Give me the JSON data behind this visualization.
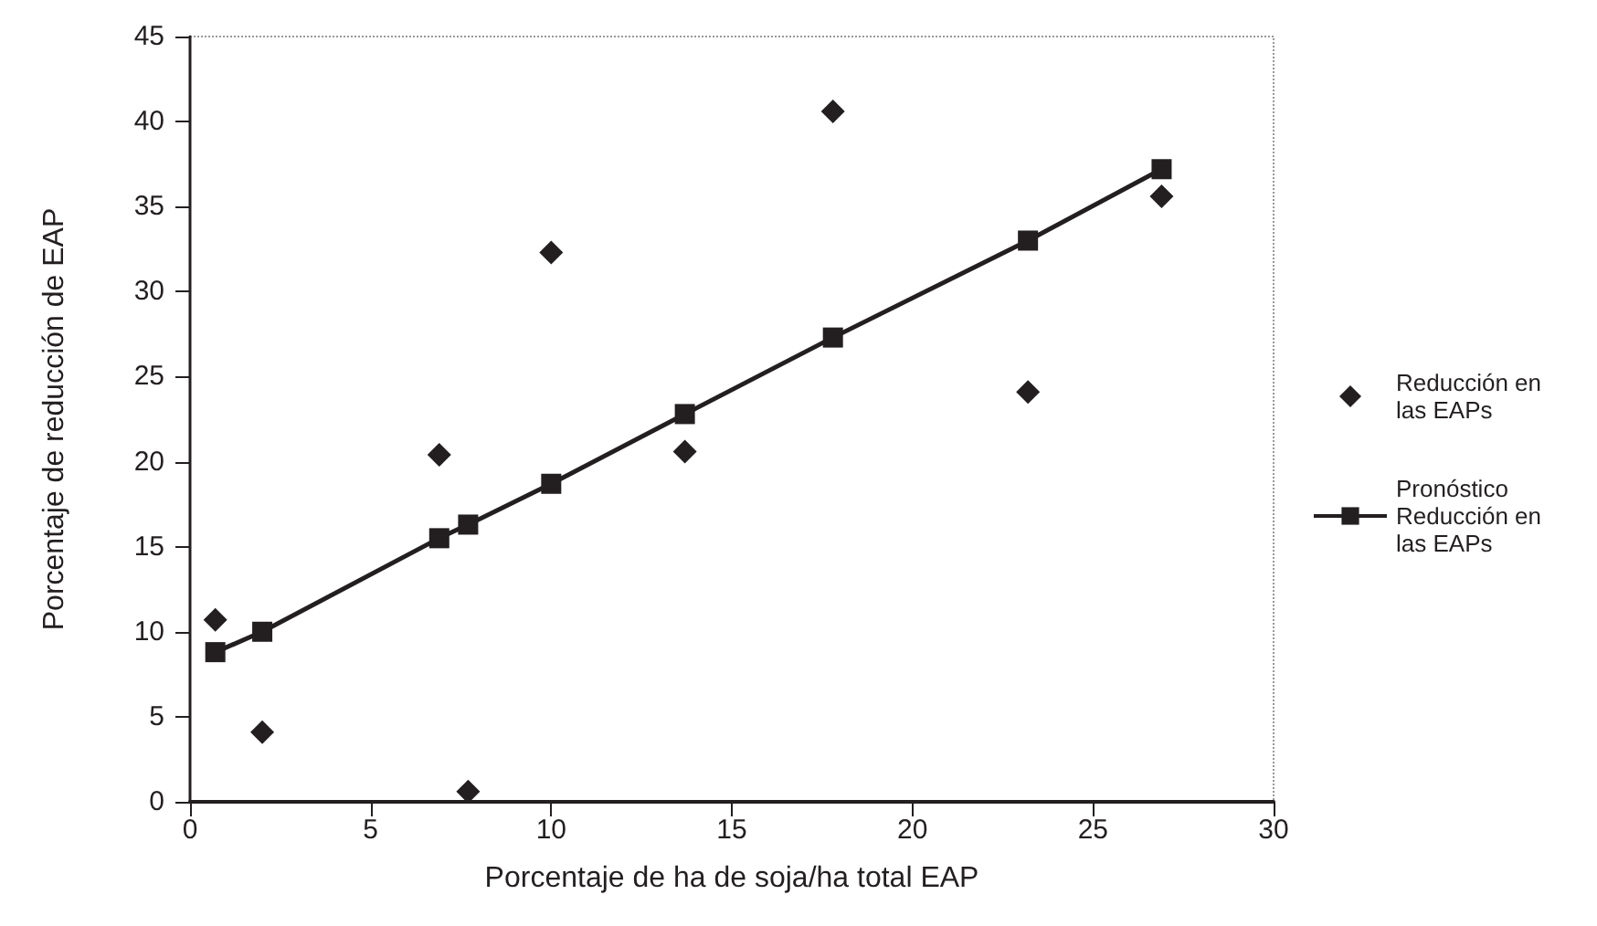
{
  "chart_data": {
    "type": "scatter",
    "xlabel": "Porcentaje de ha de soja/ha total EAP",
    "ylabel": "Porcentaje de reducción de EAP",
    "legend": "right",
    "grid": false,
    "xlim": [
      0,
      30
    ],
    "xticks": [
      0,
      5,
      10,
      15,
      20,
      25,
      30
    ],
    "ylim": [
      0,
      45
    ],
    "yticks": [
      0,
      5,
      10,
      15,
      20,
      25,
      30,
      35,
      40,
      45
    ],
    "series": [
      {
        "name": "Reducción en las EAPs",
        "type": "scatter",
        "marker": "diamond",
        "color": "#231f20",
        "x": [
          0.7,
          2.0,
          6.9,
          7.7,
          10.0,
          13.7,
          17.8,
          23.2,
          26.9
        ],
        "values": [
          10.7,
          4.1,
          20.4,
          0.6,
          32.3,
          20.6,
          40.6,
          24.1,
          35.6
        ]
      },
      {
        "name": "Pronóstico Reducción en las EAPs",
        "type": "line",
        "marker": "square",
        "line_style": "solid",
        "color": "#231f20",
        "x": [
          0.7,
          2.0,
          6.9,
          7.7,
          10.0,
          13.7,
          17.8,
          23.2,
          26.9
        ],
        "values": [
          8.8,
          10.0,
          15.5,
          16.3,
          18.7,
          22.8,
          27.3,
          33.0,
          37.2
        ]
      }
    ]
  }
}
